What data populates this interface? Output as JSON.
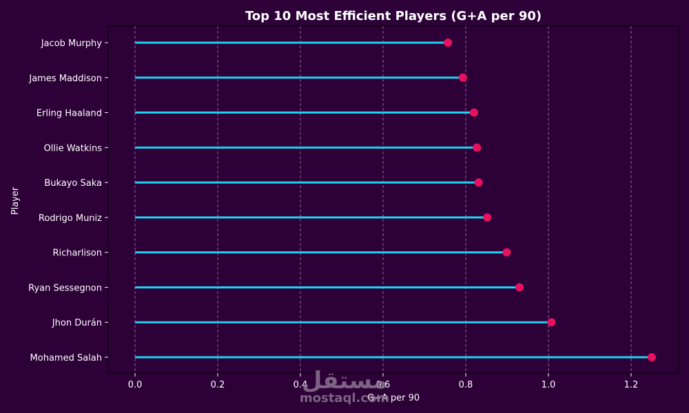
{
  "chart_data": {
    "type": "lollipop",
    "orientation": "horizontal",
    "title": "Top 10 Most Efficient Players (G+A per 90)",
    "xlabel": "G+A per 90",
    "ylabel": "Player",
    "xlim": [
      -0.065,
      1.315
    ],
    "xticks": [
      0.0,
      0.2,
      0.4,
      0.6,
      0.8,
      1.0,
      1.2
    ],
    "xtick_labels": [
      "0.0",
      "0.2",
      "0.4",
      "0.6",
      "0.8",
      "1.0",
      "1.2"
    ],
    "grid": "vertical dashed",
    "categories": [
      "Jacob Murphy",
      "James Maddison",
      "Erling Haaland",
      "Ollie Watkins",
      "Bukayo Saka",
      "Rodrigo Muniz",
      "Richarlison",
      "Ryan Sessegnon",
      "Jhon Durán",
      "Mohamed Salah"
    ],
    "values": [
      0.757,
      0.793,
      0.82,
      0.827,
      0.831,
      0.852,
      0.899,
      0.93,
      1.007,
      1.25
    ]
  },
  "colors": {
    "background": "#2d0038",
    "stem": "#1ed2f0",
    "marker": "#e8115f",
    "grid": "#8a6a96",
    "text": "#ffffff"
  },
  "watermark": {
    "arabic": "مستقل",
    "latin": "mostaql.com"
  }
}
